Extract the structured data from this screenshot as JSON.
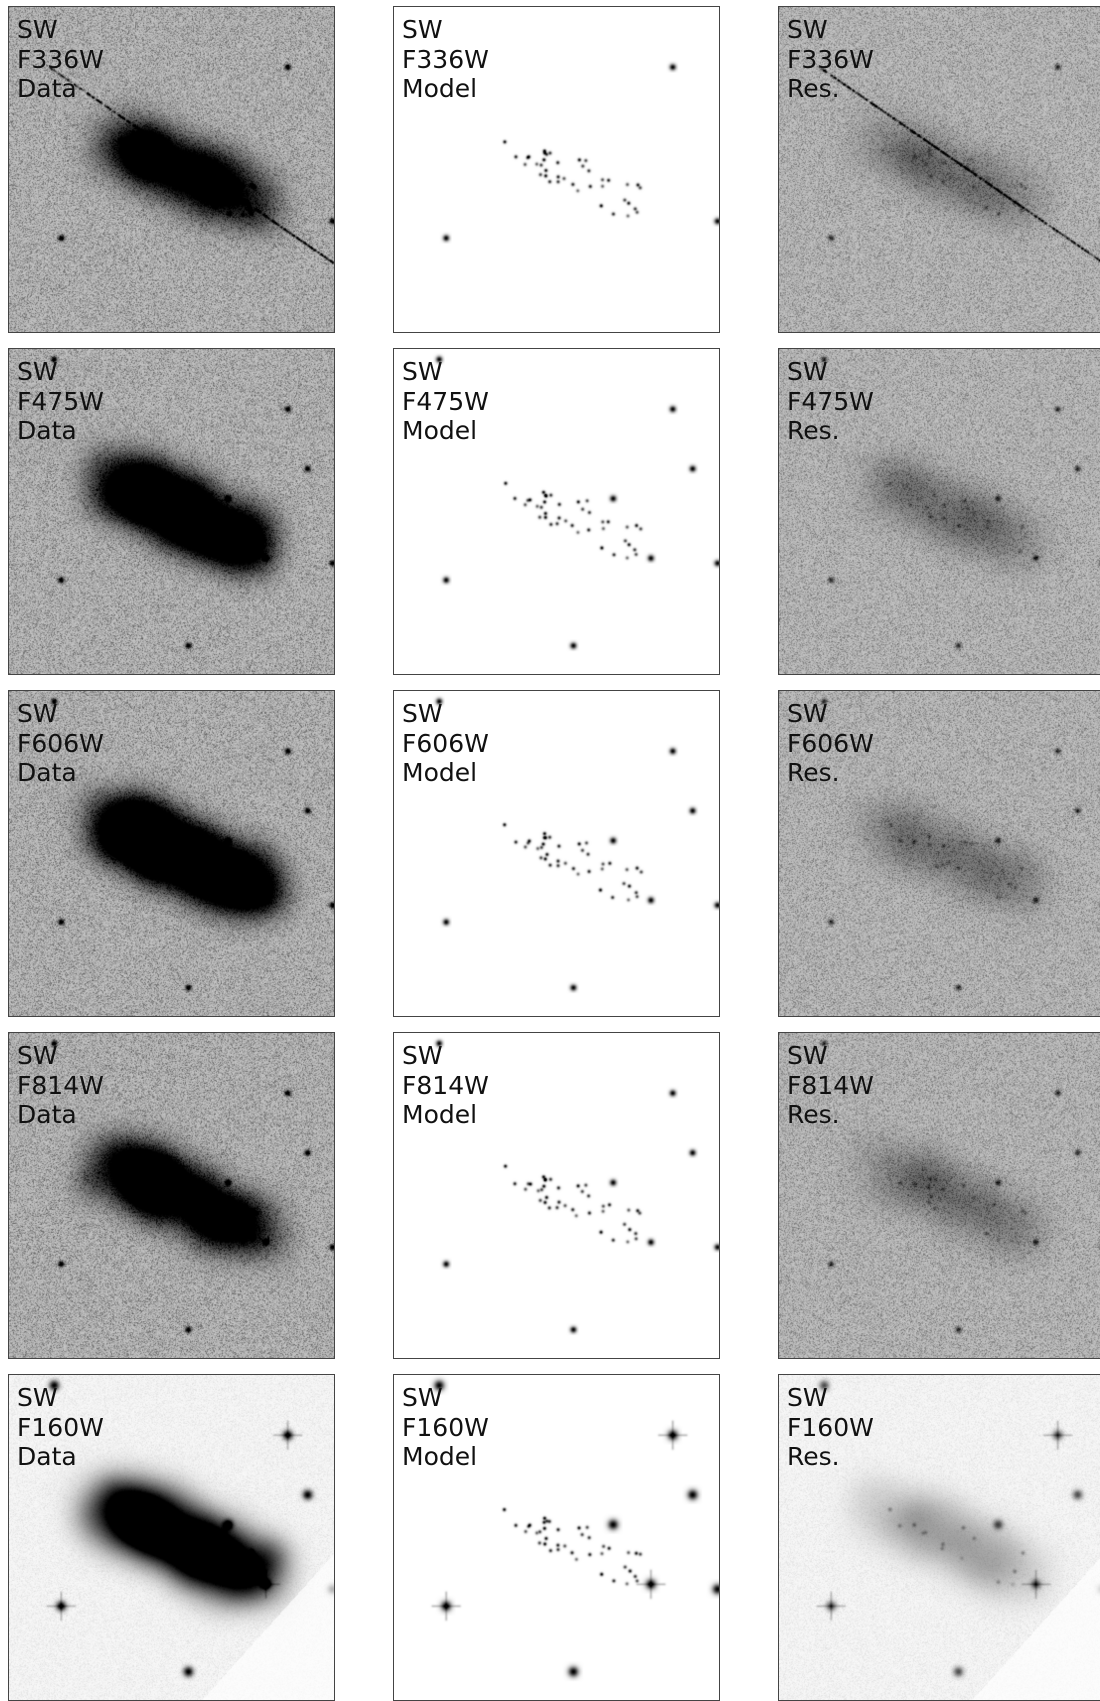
{
  "panels": [
    {
      "region": "SW",
      "filter": "F336W",
      "kind": "Data"
    },
    {
      "region": "SW",
      "filter": "F336W",
      "kind": "Model"
    },
    {
      "region": "SW",
      "filter": "F336W",
      "kind": "Res."
    },
    {
      "region": "SW",
      "filter": "F475W",
      "kind": "Data"
    },
    {
      "region": "SW",
      "filter": "F475W",
      "kind": "Model"
    },
    {
      "region": "SW",
      "filter": "F475W",
      "kind": "Res."
    },
    {
      "region": "SW",
      "filter": "F606W",
      "kind": "Data"
    },
    {
      "region": "SW",
      "filter": "F606W",
      "kind": "Model"
    },
    {
      "region": "SW",
      "filter": "F606W",
      "kind": "Res."
    },
    {
      "region": "SW",
      "filter": "F814W",
      "kind": "Data"
    },
    {
      "region": "SW",
      "filter": "F814W",
      "kind": "Model"
    },
    {
      "region": "SW",
      "filter": "F814W",
      "kind": "Res."
    },
    {
      "region": "SW",
      "filter": "F160W",
      "kind": "Data"
    },
    {
      "region": "SW",
      "filter": "F160W",
      "kind": "Model"
    },
    {
      "region": "SW",
      "filter": "F160W",
      "kind": "Res."
    }
  ],
  "colormap": "gray_r",
  "colors": {
    "background": "#ffffff",
    "frame": "#444444",
    "text": "#111111"
  }
}
